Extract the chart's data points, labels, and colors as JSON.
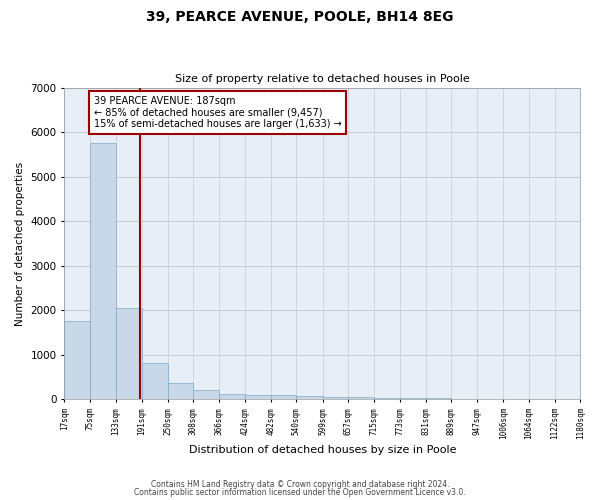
{
  "title1": "39, PEARCE AVENUE, POOLE, BH14 8EG",
  "title2": "Size of property relative to detached houses in Poole",
  "xlabel": "Distribution of detached houses by size in Poole",
  "ylabel": "Number of detached properties",
  "bar_left_edges": [
    17,
    75,
    133,
    191,
    250,
    308,
    366,
    424,
    482,
    540,
    599,
    657,
    715,
    773,
    831,
    889,
    947,
    1006,
    1064,
    1122
  ],
  "bar_widths": [
    58,
    58,
    58,
    59,
    58,
    58,
    58,
    58,
    58,
    59,
    58,
    58,
    58,
    58,
    58,
    58,
    59,
    58,
    58,
    58
  ],
  "bar_heights": [
    1760,
    5750,
    2050,
    820,
    380,
    220,
    130,
    110,
    100,
    75,
    60,
    50,
    40,
    35,
    25,
    20,
    15,
    10,
    8,
    5
  ],
  "bar_color": "#c8d8e8",
  "bar_edgecolor": "#7aaac8",
  "grid_color": "#c0ccd8",
  "background_color": "#e8eef5",
  "vline_x": 187,
  "vline_color": "#990000",
  "annotation_text": "39 PEARCE AVENUE: 187sqm\n← 85% of detached houses are smaller (9,457)\n15% of semi-detached houses are larger (1,633) →",
  "annotation_box_edgecolor": "#990000",
  "annotation_box_facecolor": "#ffffff",
  "ylim": [
    0,
    7000
  ],
  "yticks": [
    0,
    1000,
    2000,
    3000,
    4000,
    5000,
    6000,
    7000
  ],
  "tick_labels": [
    "17sqm",
    "75sqm",
    "133sqm",
    "191sqm",
    "250sqm",
    "308sqm",
    "366sqm",
    "424sqm",
    "482sqm",
    "540sqm",
    "599sqm",
    "657sqm",
    "715sqm",
    "773sqm",
    "831sqm",
    "889sqm",
    "947sqm",
    "1006sqm",
    "1064sqm",
    "1122sqm",
    "1180sqm"
  ],
  "footer1": "Contains HM Land Registry data © Crown copyright and database right 2024.",
  "footer2": "Contains public sector information licensed under the Open Government Licence v3.0.",
  "figsize": [
    6.0,
    5.0
  ],
  "dpi": 100
}
